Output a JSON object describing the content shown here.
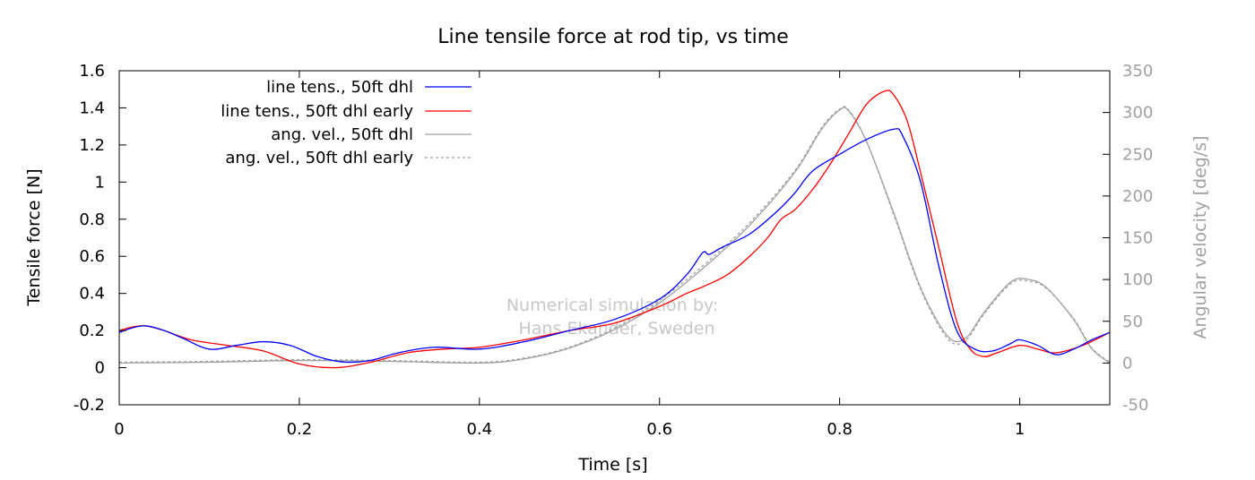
{
  "chart_data": {
    "type": "line",
    "title": "Line tensile force at rod tip, vs time",
    "xlabel": "Time [s]",
    "ylabel": "Tensile force [N]",
    "y2label": "Angular velocity [deg/s]",
    "xlim": [
      0,
      1.1
    ],
    "ylim": [
      -0.2,
      1.6
    ],
    "y2lim": [
      -50,
      350
    ],
    "x_ticks": [
      "0",
      "0.2",
      "0.4",
      "0.6",
      "0.8",
      "1"
    ],
    "x_tick_values": [
      0,
      0.2,
      0.4,
      0.6,
      0.8,
      1.0
    ],
    "y_ticks": [
      "-0.2",
      "0",
      "0.2",
      "0.4",
      "0.6",
      "0.8",
      "1",
      "1.2",
      "1.4",
      "1.6"
    ],
    "y_tick_values": [
      -0.2,
      0,
      0.2,
      0.4,
      0.6,
      0.8,
      1.0,
      1.2,
      1.4,
      1.6
    ],
    "y2_ticks": [
      "-50",
      "0",
      "50",
      "100",
      "150",
      "200",
      "250",
      "300",
      "350"
    ],
    "y2_tick_values": [
      -50,
      0,
      50,
      100,
      150,
      200,
      250,
      300,
      350
    ],
    "grid": false,
    "legend_position": "top-left",
    "watermark": [
      "Numerical simulation by:",
      "Hans Ekander, Sweden"
    ],
    "series": [
      {
        "name": "line tens., 50ft dhl",
        "axis": "left",
        "color": "#0000ff",
        "dash": "solid",
        "points": [
          [
            0,
            0.19
          ],
          [
            0.015,
            0.215
          ],
          [
            0.03,
            0.225
          ],
          [
            0.05,
            0.2
          ],
          [
            0.07,
            0.16
          ],
          [
            0.1,
            0.1
          ],
          [
            0.13,
            0.12
          ],
          [
            0.16,
            0.14
          ],
          [
            0.19,
            0.12
          ],
          [
            0.22,
            0.06
          ],
          [
            0.25,
            0.03
          ],
          [
            0.28,
            0.04
          ],
          [
            0.31,
            0.08
          ],
          [
            0.35,
            0.11
          ],
          [
            0.4,
            0.1
          ],
          [
            0.45,
            0.14
          ],
          [
            0.5,
            0.2
          ],
          [
            0.55,
            0.26
          ],
          [
            0.6,
            0.37
          ],
          [
            0.63,
            0.5
          ],
          [
            0.648,
            0.62
          ],
          [
            0.655,
            0.61
          ],
          [
            0.67,
            0.65
          ],
          [
            0.7,
            0.72
          ],
          [
            0.73,
            0.84
          ],
          [
            0.75,
            0.94
          ],
          [
            0.77,
            1.06
          ],
          [
            0.8,
            1.15
          ],
          [
            0.83,
            1.23
          ],
          [
            0.86,
            1.285
          ],
          [
            0.87,
            1.25
          ],
          [
            0.89,
            1.0
          ],
          [
            0.91,
            0.55
          ],
          [
            0.93,
            0.2
          ],
          [
            0.95,
            0.1
          ],
          [
            0.97,
            0.09
          ],
          [
            0.99,
            0.13
          ],
          [
            1.0,
            0.15
          ],
          [
            1.02,
            0.12
          ],
          [
            1.04,
            0.07
          ],
          [
            1.06,
            0.1
          ],
          [
            1.08,
            0.15
          ],
          [
            1.1,
            0.19
          ]
        ]
      },
      {
        "name": "line tens., 50ft dhl early",
        "axis": "left",
        "color": "#ff0000",
        "dash": "solid",
        "points": [
          [
            0,
            0.2
          ],
          [
            0.015,
            0.22
          ],
          [
            0.03,
            0.225
          ],
          [
            0.05,
            0.2
          ],
          [
            0.08,
            0.15
          ],
          [
            0.12,
            0.12
          ],
          [
            0.16,
            0.09
          ],
          [
            0.2,
            0.02
          ],
          [
            0.24,
            0.0
          ],
          [
            0.28,
            0.03
          ],
          [
            0.32,
            0.08
          ],
          [
            0.36,
            0.1
          ],
          [
            0.4,
            0.11
          ],
          [
            0.45,
            0.15
          ],
          [
            0.5,
            0.2
          ],
          [
            0.55,
            0.24
          ],
          [
            0.6,
            0.33
          ],
          [
            0.63,
            0.4
          ],
          [
            0.65,
            0.44
          ],
          [
            0.675,
            0.5
          ],
          [
            0.7,
            0.6
          ],
          [
            0.72,
            0.7
          ],
          [
            0.735,
            0.8
          ],
          [
            0.75,
            0.85
          ],
          [
            0.77,
            0.96
          ],
          [
            0.79,
            1.1
          ],
          [
            0.81,
            1.26
          ],
          [
            0.83,
            1.42
          ],
          [
            0.85,
            1.49
          ],
          [
            0.86,
            1.47
          ],
          [
            0.875,
            1.33
          ],
          [
            0.89,
            1.05
          ],
          [
            0.91,
            0.65
          ],
          [
            0.93,
            0.25
          ],
          [
            0.945,
            0.1
          ],
          [
            0.96,
            0.06
          ],
          [
            0.975,
            0.08
          ],
          [
            1.0,
            0.12
          ],
          [
            1.02,
            0.1
          ],
          [
            1.04,
            0.08
          ],
          [
            1.07,
            0.12
          ],
          [
            1.1,
            0.19
          ]
        ]
      },
      {
        "name": "ang. vel., 50ft dhl",
        "axis": "right",
        "color": "#a0a0a0",
        "dash": "solid",
        "points": [
          [
            0,
            0
          ],
          [
            0.1,
            1
          ],
          [
            0.2,
            3
          ],
          [
            0.3,
            2
          ],
          [
            0.4,
            0
          ],
          [
            0.45,
            5
          ],
          [
            0.5,
            18
          ],
          [
            0.55,
            40
          ],
          [
            0.6,
            72
          ],
          [
            0.65,
            115
          ],
          [
            0.7,
            165
          ],
          [
            0.75,
            228
          ],
          [
            0.78,
            280
          ],
          [
            0.8,
            303
          ],
          [
            0.81,
            302
          ],
          [
            0.83,
            265
          ],
          [
            0.86,
            180
          ],
          [
            0.89,
            90
          ],
          [
            0.92,
            32
          ],
          [
            0.94,
            30
          ],
          [
            0.96,
            60
          ],
          [
            0.99,
            97
          ],
          [
            1.01,
            100
          ],
          [
            1.03,
            90
          ],
          [
            1.06,
            52
          ],
          [
            1.08,
            17
          ],
          [
            1.1,
            0
          ]
        ]
      },
      {
        "name": "ang. vel., 50ft dhl early",
        "axis": "right",
        "color": "#a0a0a0",
        "dash": "dashed",
        "points": [
          [
            0,
            1
          ],
          [
            0.1,
            2
          ],
          [
            0.2,
            4
          ],
          [
            0.3,
            3
          ],
          [
            0.4,
            1
          ],
          [
            0.45,
            6
          ],
          [
            0.5,
            19
          ],
          [
            0.55,
            42
          ],
          [
            0.6,
            75
          ],
          [
            0.65,
            118
          ],
          [
            0.7,
            168
          ],
          [
            0.75,
            230
          ],
          [
            0.78,
            282
          ],
          [
            0.8,
            304
          ],
          [
            0.81,
            303
          ],
          [
            0.83,
            265
          ],
          [
            0.86,
            178
          ],
          [
            0.89,
            88
          ],
          [
            0.92,
            29
          ],
          [
            0.94,
            27
          ],
          [
            0.96,
            58
          ],
          [
            0.99,
            95
          ],
          [
            1.01,
            98
          ],
          [
            1.03,
            89
          ],
          [
            1.06,
            53
          ],
          [
            1.08,
            18
          ],
          [
            1.1,
            1
          ]
        ]
      }
    ]
  }
}
